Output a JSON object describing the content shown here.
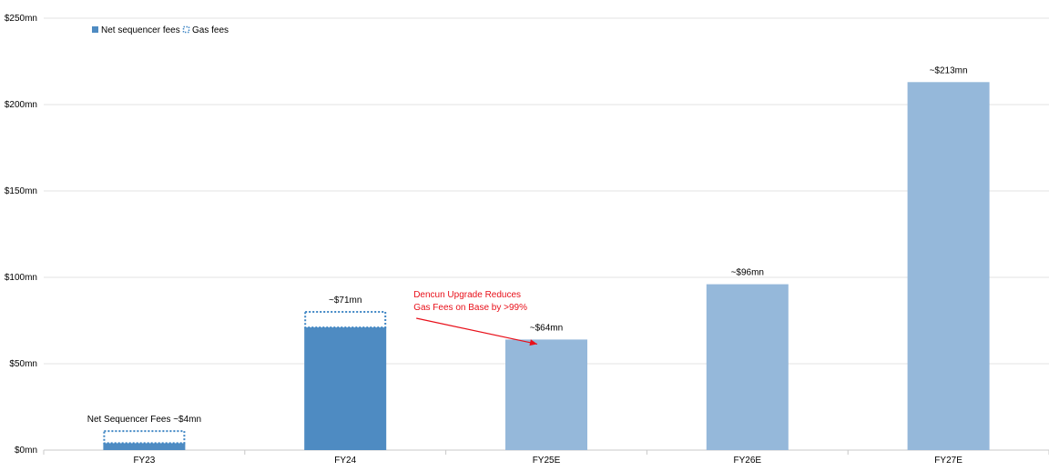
{
  "chart_data": {
    "type": "bar",
    "title": "",
    "xlabel": "",
    "ylabel": "",
    "categories": [
      "FY23",
      "FY24",
      "FY25E",
      "FY26E",
      "FY27E"
    ],
    "ylim": [
      0,
      250
    ],
    "yticks": [
      0,
      50,
      100,
      150,
      200,
      250
    ],
    "ytick_labels": [
      "$0mn",
      "$50mn",
      "$100mn",
      "$150mn",
      "$200mn",
      "$250mn"
    ],
    "grid": true,
    "legend_position": "top-left",
    "series": [
      {
        "name": "Net sequencer fees",
        "values": [
          4,
          71,
          64,
          96,
          213
        ],
        "colors": [
          "#4e8bc2",
          "#4e8bc2",
          "#95b8da",
          "#95b8da",
          "#95b8da"
        ]
      },
      {
        "name": "Gas fees",
        "style": "dotted-outline",
        "values": [
          7,
          9,
          0,
          0,
          0
        ],
        "color": "#3f86c4"
      }
    ],
    "data_labels": [
      "Net Sequencer Fees ~$4mn",
      "~$71mn",
      "~$64mn",
      "~$96mn",
      "~$213mn"
    ],
    "annotation": {
      "lines": [
        "Dencun Upgrade Reduces",
        "Gas Fees on Base by >99%"
      ],
      "color": "#e8101a",
      "from_category": "FY24",
      "to_category": "FY25E"
    }
  }
}
